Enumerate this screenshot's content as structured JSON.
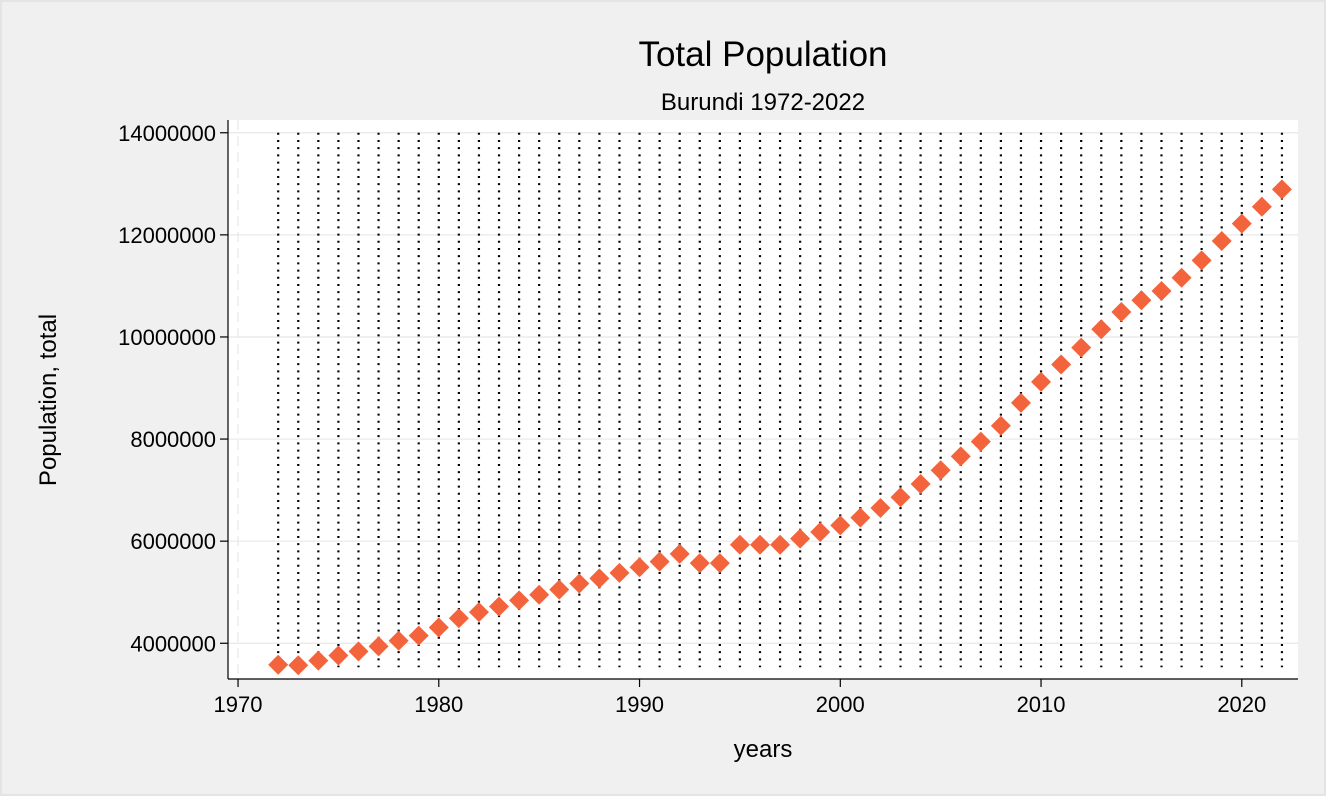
{
  "chart_data": {
    "type": "scatter",
    "title": "Total Population",
    "subtitle": "Burundi 1972-2022",
    "xlabel": "years",
    "ylabel": "Population, total",
    "xlim": [
      1969.5,
      2022.8
    ],
    "ylim": [
      3300000,
      14250000
    ],
    "xticks": [
      1970,
      1980,
      1990,
      2000,
      2010,
      2020
    ],
    "yticks": [
      4000000,
      6000000,
      8000000,
      10000000,
      12000000,
      14000000
    ],
    "ytick_labels": [
      "4000000",
      "6000000",
      "8000000",
      "10000000",
      "12000000",
      "14000000"
    ],
    "xtick_labels": [
      "1970",
      "1980",
      "1990",
      "2000",
      "2010",
      "2020"
    ],
    "grid": "horizontal",
    "marker": "diamond",
    "marker_color": "#f4643c",
    "dropline_color": "#000000",
    "series": [
      {
        "x": [
          1972,
          1973,
          1974,
          1975,
          1976,
          1977,
          1978,
          1979,
          1980,
          1981,
          1982,
          1983,
          1984,
          1985,
          1986,
          1987,
          1988,
          1989,
          1990,
          1991,
          1992,
          1993,
          1994,
          1995,
          1996,
          1997,
          1998,
          1999,
          2000,
          2001,
          2002,
          2003,
          2004,
          2005,
          2006,
          2007,
          2008,
          2009,
          2010,
          2011,
          2012,
          2013,
          2014,
          2015,
          2016,
          2017,
          2018,
          2019,
          2020,
          2021,
          2022
        ],
        "y": [
          3580000,
          3570000,
          3660000,
          3760000,
          3840000,
          3940000,
          4050000,
          4150000,
          4310000,
          4490000,
          4610000,
          4720000,
          4840000,
          4950000,
          5050000,
          5170000,
          5270000,
          5380000,
          5490000,
          5600000,
          5750000,
          5570000,
          5570000,
          5930000,
          5930000,
          5930000,
          6050000,
          6180000,
          6310000,
          6460000,
          6650000,
          6860000,
          7120000,
          7390000,
          7660000,
          7950000,
          8260000,
          8710000,
          9120000,
          9460000,
          9790000,
          10150000,
          10490000,
          10720000,
          10900000,
          11160000,
          11500000,
          11880000,
          12220000,
          12550000,
          12890000
        ]
      }
    ]
  }
}
